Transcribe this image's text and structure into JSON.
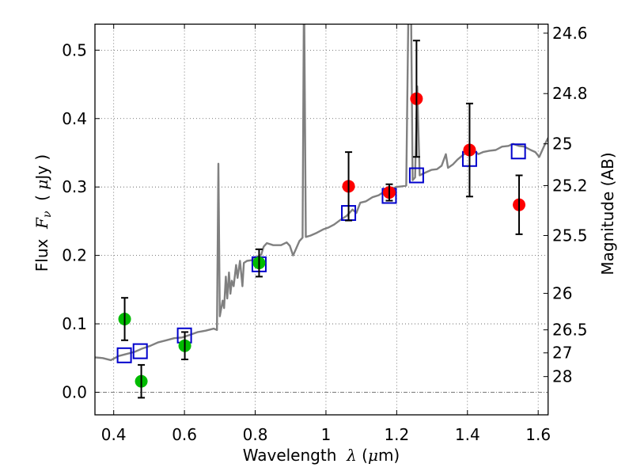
{
  "chart_data": {
    "type": "scatter",
    "title": "",
    "xlabel": "Wavelength  λ (μm)",
    "xlabel_parts": {
      "prefix": "Wavelength  ",
      "symbol": "λ",
      "suffix_open": " (",
      "unit_mu": "μ",
      "suffix_close": "m)"
    },
    "ylabel": "Flux  Fν  ( μJy )",
    "ylabel_parts": {
      "prefix": "Flux  ",
      "symbol": "F",
      "subscript": "ν",
      "open": "  ( ",
      "unit_mu": "μ",
      "close": "Jy )"
    },
    "y2label": "Magnitude (AB)",
    "xlim": [
      0.347,
      1.628
    ],
    "ylim": [
      -0.033,
      0.538
    ],
    "xticks": [
      {
        "value": 0.4,
        "label": "0.4"
      },
      {
        "value": 0.6,
        "label": "0.6"
      },
      {
        "value": 0.8,
        "label": "0.8"
      },
      {
        "value": 1.0,
        "label": "1"
      },
      {
        "value": 1.2,
        "label": "1.2"
      },
      {
        "value": 1.4,
        "label": "1.4"
      },
      {
        "value": 1.6,
        "label": "1.6"
      }
    ],
    "yticks": [
      {
        "value": 0.0,
        "label": "0.0"
      },
      {
        "value": 0.1,
        "label": "0.1"
      },
      {
        "value": 0.2,
        "label": "0.2"
      },
      {
        "value": 0.3,
        "label": "0.3"
      },
      {
        "value": 0.4,
        "label": "0.4"
      },
      {
        "value": 0.5,
        "label": "0.5"
      }
    ],
    "y2ticks": [
      {
        "mag": 24.6,
        "label": "24.6"
      },
      {
        "mag": 24.8,
        "label": "24.8"
      },
      {
        "mag": 25.0,
        "label": "25"
      },
      {
        "mag": 25.2,
        "label": "25.2"
      },
      {
        "mag": 25.5,
        "label": "25.5"
      },
      {
        "mag": 26.0,
        "label": "26"
      },
      {
        "mag": 26.5,
        "label": "26.5"
      },
      {
        "mag": 27.0,
        "label": "27"
      },
      {
        "mag": 28.0,
        "label": "28"
      }
    ],
    "mag_zero_point_ujy": 23.9,
    "grid": true,
    "zero_line": true,
    "legend": "none",
    "series": [
      {
        "name": "model spectrum",
        "kind": "line",
        "color": "#808080",
        "x": [
          0.347,
          0.369,
          0.392,
          0.414,
          0.437,
          0.459,
          0.481,
          0.504,
          0.526,
          0.549,
          0.571,
          0.593,
          0.616,
          0.638,
          0.66,
          0.683,
          0.692,
          0.696,
          0.7,
          0.708,
          0.712,
          0.717,
          0.721,
          0.726,
          0.73,
          0.734,
          0.739,
          0.746,
          0.75,
          0.757,
          0.764,
          0.768,
          0.777,
          0.79,
          0.806,
          0.817,
          0.824,
          0.833,
          0.851,
          0.873,
          0.889,
          0.898,
          0.907,
          0.914,
          0.925,
          0.934,
          0.938,
          0.943,
          0.956,
          0.974,
          0.992,
          1.008,
          1.023,
          1.041,
          1.059,
          1.075,
          1.086,
          1.097,
          1.113,
          1.131,
          1.149,
          1.164,
          1.18,
          1.198,
          1.216,
          1.227,
          1.234,
          1.24,
          1.245,
          1.252,
          1.258,
          1.265,
          1.281,
          1.298,
          1.314,
          1.327,
          1.339,
          1.345,
          1.359,
          1.372,
          1.388,
          1.403,
          1.417,
          1.431,
          1.444,
          1.462,
          1.48,
          1.498,
          1.516,
          1.529,
          1.545,
          1.561,
          1.579,
          1.592,
          1.603,
          1.617,
          1.628
        ],
        "y": [
          0.051,
          0.05,
          0.047,
          0.053,
          0.056,
          0.059,
          0.064,
          0.068,
          0.073,
          0.076,
          0.079,
          0.08,
          0.084,
          0.088,
          0.09,
          0.093,
          0.091,
          0.334,
          0.111,
          0.134,
          0.123,
          0.169,
          0.137,
          0.175,
          0.144,
          0.163,
          0.155,
          0.186,
          0.167,
          0.192,
          0.155,
          0.189,
          0.192,
          0.193,
          0.198,
          0.201,
          0.213,
          0.218,
          0.215,
          0.215,
          0.219,
          0.214,
          0.2,
          0.208,
          0.221,
          0.226,
          0.6,
          0.227,
          0.229,
          0.233,
          0.238,
          0.241,
          0.245,
          0.252,
          0.258,
          0.267,
          0.262,
          0.277,
          0.279,
          0.285,
          0.288,
          0.293,
          0.296,
          0.3,
          0.301,
          0.302,
          0.6,
          0.6,
          0.31,
          0.314,
          0.447,
          0.317,
          0.321,
          0.325,
          0.326,
          0.331,
          0.348,
          0.328,
          0.333,
          0.34,
          0.347,
          0.352,
          0.354,
          0.348,
          0.351,
          0.353,
          0.354,
          0.359,
          0.36,
          0.363,
          0.36,
          0.359,
          0.354,
          0.351,
          0.344,
          0.36,
          0.372
        ]
      },
      {
        "name": "model photometry",
        "kind": "open-square",
        "color": "#0000cc",
        "x": [
          0.43,
          0.475,
          0.6,
          0.811,
          1.064,
          1.179,
          1.256,
          1.406,
          1.544
        ],
        "y": [
          0.054,
          0.06,
          0.083,
          0.187,
          0.262,
          0.287,
          0.317,
          0.341,
          0.352
        ]
      },
      {
        "name": "optical photometry",
        "kind": "filled-circle",
        "color": "#00bb00",
        "x": [
          0.431,
          0.478,
          0.601,
          0.811
        ],
        "y": [
          0.107,
          0.016,
          0.068,
          0.189
        ],
        "yerr": [
          0.031,
          0.024,
          0.02,
          0.02
        ]
      },
      {
        "name": "near-infrared photometry",
        "kind": "filled-circle",
        "color": "#ff0000",
        "x": [
          1.064,
          1.179,
          1.256,
          1.406,
          1.546
        ],
        "y": [
          0.301,
          0.292,
          0.429,
          0.354,
          0.274
        ],
        "yerr": [
          0.05,
          0.012,
          0.085,
          0.068,
          0.043
        ]
      }
    ]
  }
}
